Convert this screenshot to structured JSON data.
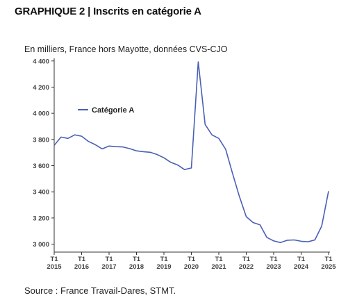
{
  "header": {
    "title": "GRAPHIQUE 2 | Inscrits en catégorie A",
    "subtitle": "En milliers, France hors Mayotte, données CVS-CJO"
  },
  "footer": {
    "source": "Source : France Travail-Dares, STMT."
  },
  "chart_data": {
    "type": "line",
    "title": "",
    "xlabel": "",
    "ylabel": "",
    "ylim": [
      2950,
      4420
    ],
    "yticks": [
      3000,
      3200,
      3400,
      3600,
      3800,
      4000,
      4200,
      4400
    ],
    "ytick_labels": [
      "3 000",
      "3 200",
      "3 400",
      "3 600",
      "3 800",
      "4 000",
      "4 200",
      "4 400"
    ],
    "xticks": [
      {
        "line1": "T1",
        "line2": "2015"
      },
      {
        "line1": "T1",
        "line2": "2016"
      },
      {
        "line1": "T1",
        "line2": "2017"
      },
      {
        "line1": "T1",
        "line2": "2018"
      },
      {
        "line1": "T1",
        "line2": "2019"
      },
      {
        "line1": "T1",
        "line2": "2020"
      },
      {
        "line1": "T1",
        "line2": "2021"
      },
      {
        "line1": "T1",
        "line2": "2022"
      },
      {
        "line1": "T1",
        "line2": "2023"
      },
      {
        "line1": "T1",
        "line2": "2024"
      },
      {
        "line1": "T1",
        "line2": "2025"
      }
    ],
    "grid": false,
    "legend_position": "upper-left",
    "series": [
      {
        "name": "Catégorie A",
        "color": "#4a5fb5",
        "x": [
          "2015-T1",
          "2015-T2",
          "2015-T3",
          "2015-T4",
          "2016-T1",
          "2016-T2",
          "2016-T3",
          "2016-T4",
          "2017-T1",
          "2017-T2",
          "2017-T3",
          "2017-T4",
          "2018-T1",
          "2018-T2",
          "2018-T3",
          "2018-T4",
          "2019-T1",
          "2019-T2",
          "2019-T3",
          "2019-T4",
          "2020-T1",
          "2020-T2",
          "2020-T3",
          "2020-T4",
          "2021-T1",
          "2021-T2",
          "2021-T3",
          "2021-T4",
          "2022-T1",
          "2022-T2",
          "2022-T3",
          "2022-T4",
          "2023-T1",
          "2023-T2",
          "2023-T3",
          "2023-T4",
          "2024-T1",
          "2024-T2",
          "2024-T3",
          "2024-T4",
          "2025-T1"
        ],
        "values": [
          3755,
          3818,
          3808,
          3835,
          3825,
          3785,
          3760,
          3728,
          3750,
          3745,
          3743,
          3730,
          3713,
          3707,
          3702,
          3685,
          3660,
          3625,
          3605,
          3570,
          3582,
          4393,
          3915,
          3835,
          3808,
          3725,
          3540,
          3365,
          3210,
          3165,
          3148,
          3052,
          3025,
          3012,
          3030,
          3032,
          3022,
          3018,
          3032,
          3138,
          3405
        ]
      }
    ]
  }
}
